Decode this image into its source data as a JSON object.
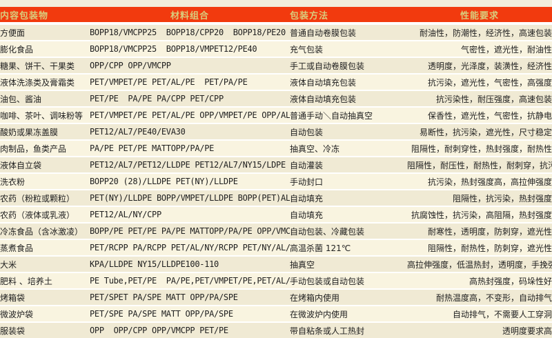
{
  "colors": {
    "header_bg": "#f23a0e",
    "header_text": "#d9cc7c",
    "row_bg_odd": "#f0ead4",
    "row_bg_even": "#f9f4e0",
    "separator": "#ffffff",
    "body_text": "#202020",
    "page_bg": "#f2eddb"
  },
  "table": {
    "headers": [
      "内容包装物",
      "材料组合",
      "包装方法",
      "性能要求"
    ],
    "rows": [
      {
        "item": "方便面",
        "materials": "BOPP18/VMCPP25  BOPP18/CPP20  BOPP18/PE20",
        "method": "普通自动卷膜包装",
        "requirements": "耐油性，防潮性，经济性，高速包装"
      },
      {
        "item": "膨化食品",
        "materials": "BOPP18/VMCPP25  BOPP18/VMPET12/PE40",
        "method": "充气包装",
        "requirements": "气密性，遮光性，耐油性"
      },
      {
        "item": "糖果、饼干、干果类",
        "materials": "OPP/CPP OPP/VMCPP",
        "method": "手工或自动卷膜包装",
        "requirements": "透明度，光泽度，装潢性，经济性"
      },
      {
        "item": "液体洗涤类及膏霜类",
        "materials": "PET/VMPET/PE PET/AL/PE  PET/PA/PE",
        "method": "液体自动填充包装",
        "requirements": "抗污染，遮光性，气密性，高强度"
      },
      {
        "item": "油包、酱油",
        "materials": "PET/PE  PA/PE PA/CPP PET/CPP",
        "method": "液体自动填充包装",
        "requirements": "抗污染性，耐压强度，高速包装"
      },
      {
        "item": "咖啡、茶叶、调味粉等",
        "materials": "PET/VMPET/PE PET/AL/PE OPP/VMPET/PE OPP/AL/PE",
        "method": "普通手动＼自动抽真空",
        "requirements": "保香性，遮光性，气密性，抗静电"
      },
      {
        "item": "酸奶或果冻盖膜",
        "materials": "PET12/AL7/PE40/EVA30",
        "method": "自动包装",
        "requirements": "易断性，抗污染，遮光性，尺寸稳定"
      },
      {
        "item": "肉制品，鱼类产品",
        "materials": "PA/PE PET/PE MATTOPP/PA/PE",
        "method": "抽真空、冷冻",
        "requirements": "阻隔性，耐刺穿性，热封强度，耐热性"
      },
      {
        "item": "液体自立袋",
        "materials": "PET12/AL7/PET12/LLDPE PET12/AL7/NY15/LDPE",
        "method": "自动灌装",
        "requirements": "阻隔性，耐压性，耐热性，耐刺穿，抗污染"
      },
      {
        "item": "洗衣粉",
        "materials": "BOPP20 (28)/LLDPE PET(NY)/LLDPE",
        "method": "手动封口",
        "requirements": "抗污染，热封强度高，高拉伸强度"
      },
      {
        "item": "农药（粉粒或颗粒）",
        "materials": "PET(NY)/LLDPE BOPP/VMPET/LLDPE BOPP(PET)AL/LLDPE",
        "method": "自动填充",
        "requirements": "阻隔性，抗污染，热封强度"
      },
      {
        "item": "农药（液体或乳液）",
        "materials": "PET12/AL/NY/CPP",
        "method": "自动填充",
        "requirements": "抗腐蚀性，抗污染，高阻隔，热封强度"
      },
      {
        "item": "冷冻食品（含冰激凌）",
        "materials": "BOPP/PE PET/PE PA/PE MATTOPP/PA/PE OPP/VMCPP",
        "method": "自动包装、冷藏包装",
        "requirements": "耐寒性，透明度，防刺穿，遮光性"
      },
      {
        "item": "蒸煮食品",
        "materials": "PET/RCPP PA/RCPP PET/AL/NY/RCPP PET/NY/AL/RCPP",
        "method": "高温杀菌 121℃",
        "requirements": "阻隔性，耐热性，防刺穿，遮光性"
      },
      {
        "item": "大米",
        "materials": "KPA/LLDPE NY15/LLDPE100-110",
        "method": "抽真空",
        "requirements": "高拉伸强度，低温热封，透明度，手挽强度高"
      },
      {
        "item": "肥料 、培养土",
        "materials": "PE Tube,PET/PE  PA/PE,PET/VMPET/PE,PET/AL/PE",
        "method": "手动包装或自动包装",
        "requirements": "高热封强度，码垛性好"
      },
      {
        "item": "烤箱袋",
        "materials": "PET/SPET PA/SPE MATT OPP/PA/SPE",
        "method": "在烤箱内使用",
        "requirements": "耐热温度高，不变形，自动排气"
      },
      {
        "item": "微波炉袋",
        "materials": "PET/SPE PA/SPE MATT OPP/PA/SPE",
        "method": "在微波炉内使用",
        "requirements": "自动排气，不需要人工穿洞"
      },
      {
        "item": "服装袋",
        "materials": "OPP  OPP/CPP OPP/VMCPP PET/PE",
        "method": "带自粘条或人工热封",
        "requirements": "透明度要求高"
      }
    ]
  }
}
